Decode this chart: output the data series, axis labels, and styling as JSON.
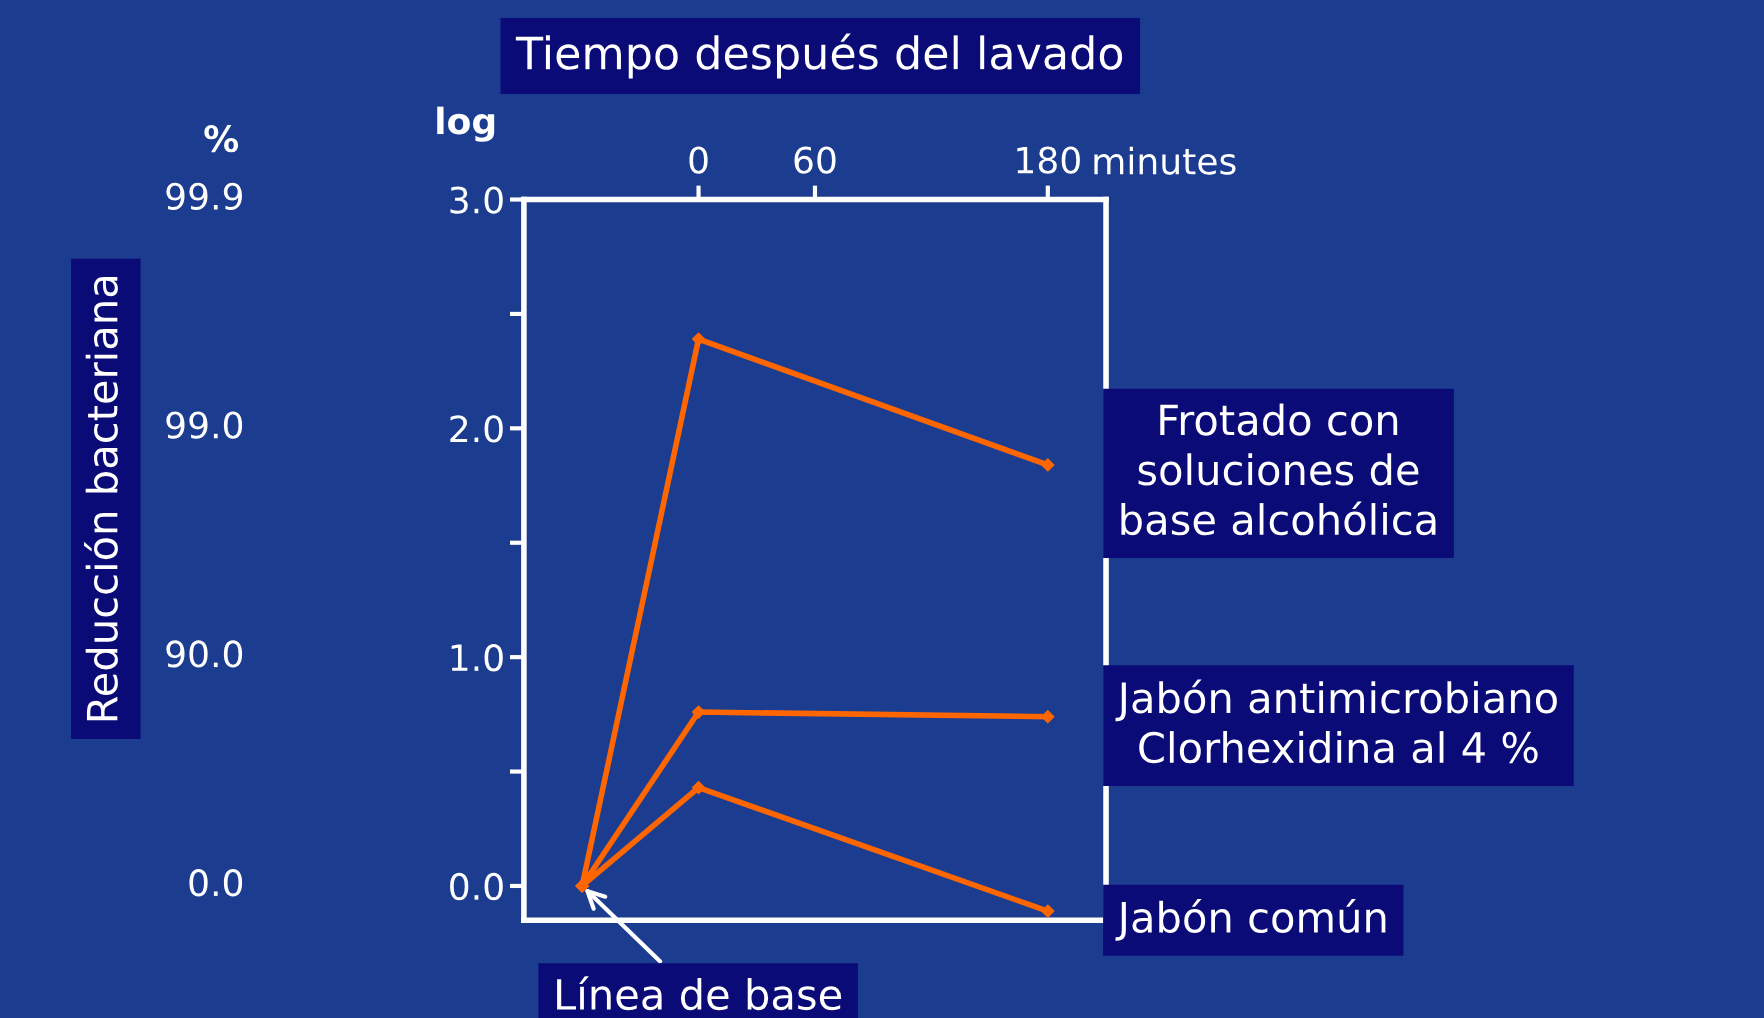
{
  "chart_data": {
    "type": "line",
    "title": "Tiempo después del lavado",
    "xlabel": "minutes",
    "ylabel": "log",
    "x": [
      -60,
      0,
      180
    ],
    "series": [
      {
        "name": "Frotado con\nsoluciones de\nbase alcohólica",
        "color": "#ff6600",
        "values": [
          0,
          2.39,
          1.84
        ]
      },
      {
        "name": "Jabón antimicrobiano\nClorhexidina al 4 %",
        "color": "#ff6600",
        "values": [
          0,
          0.76,
          0.74
        ]
      },
      {
        "name": "Jabón común",
        "color": "#ff6600",
        "values": [
          0,
          0.43,
          -0.11
        ]
      }
    ],
    "xlim": [
      -90,
      210
    ],
    "xticks": [
      0,
      60,
      180
    ],
    "ylim": [
      -0.15,
      3.0
    ],
    "yticks": [
      {
        "value": 0,
        "label": "0.0"
      },
      {
        "value": 0.5,
        "label": null
      },
      {
        "value": 1,
        "label": "1.0"
      },
      {
        "value": 1.5,
        "label": null
      },
      {
        "value": 2,
        "label": "2.0"
      },
      {
        "value": 2.5,
        "label": null
      },
      {
        "value": 3,
        "label": "3.0"
      }
    ],
    "annotations": [
      "Reducción bacteriana",
      "%",
      "99.9",
      "99.0",
      "90.0",
      "0.0",
      {
        "text": "Línea de base",
        "x": -60,
        "y": 0
      }
    ],
    "marker": "diamond",
    "line_style": "solid",
    "grid": false,
    "legend": false
  }
}
